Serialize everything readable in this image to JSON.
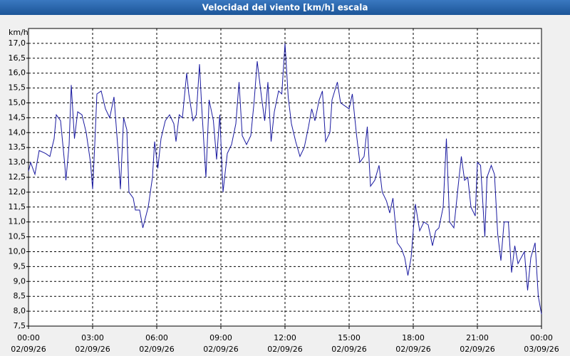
{
  "chart_data": {
    "type": "line",
    "title": "Velocidad del viento [km/h] escala",
    "y_label": "km/h",
    "color": "#1a1aa0",
    "grid": true,
    "xlim": [
      0,
      24
    ],
    "xticks": [
      {
        "value": 0,
        "label": "00:00"
      },
      {
        "value": 3,
        "label": "03:00"
      },
      {
        "value": 6,
        "label": "06:00"
      },
      {
        "value": 9,
        "label": "09:00"
      },
      {
        "value": 12,
        "label": "12:00"
      },
      {
        "value": 15,
        "label": "15:00"
      },
      {
        "value": 18,
        "label": "18:00"
      },
      {
        "value": 21,
        "label": "21:00"
      },
      {
        "value": 24,
        "label": "00:00"
      }
    ],
    "xtick_dates": [
      "02/09/26",
      "02/09/26",
      "02/09/26",
      "02/09/26",
      "02/09/26",
      "02/09/26",
      "02/09/26",
      "02/09/26",
      "03/09/26"
    ],
    "ylim": [
      7.5,
      17.5
    ],
    "yticks": [
      {
        "value": 7.5,
        "label": "7,5"
      },
      {
        "value": 8,
        "label": "8,0"
      },
      {
        "value": 8.5,
        "label": "8,5"
      },
      {
        "value": 9,
        "label": "9,0"
      },
      {
        "value": 9.5,
        "label": "9,5"
      },
      {
        "value": 10,
        "label": "10,0"
      },
      {
        "value": 10.5,
        "label": "10,5"
      },
      {
        "value": 11,
        "label": "11,0"
      },
      {
        "value": 11.5,
        "label": "11,5"
      },
      {
        "value": 12,
        "label": "12,0"
      },
      {
        "value": 12.5,
        "label": "12,5"
      },
      {
        "value": 13,
        "label": "13,0"
      },
      {
        "value": 13.5,
        "label": "13,5"
      },
      {
        "value": 14,
        "label": "14,0"
      },
      {
        "value": 14.5,
        "label": "14,5"
      },
      {
        "value": 15,
        "label": "15,0"
      },
      {
        "value": 15.5,
        "label": "15,5"
      },
      {
        "value": 16,
        "label": "16,0"
      },
      {
        "value": 16.5,
        "label": "16,5"
      },
      {
        "value": 17,
        "label": "17,0"
      }
    ],
    "x": [
      0.0,
      0.1,
      0.3,
      0.5,
      0.8,
      1.0,
      1.2,
      1.3,
      1.5,
      1.7,
      1.75,
      1.9,
      2.0,
      2.15,
      2.3,
      2.5,
      2.7,
      2.9,
      3.0,
      3.1,
      3.2,
      3.4,
      3.6,
      3.8,
      4.0,
      4.2,
      4.3,
      4.45,
      4.6,
      4.7,
      4.9,
      5.0,
      5.2,
      5.35,
      5.6,
      5.8,
      5.9,
      6.05,
      6.2,
      6.4,
      6.6,
      6.8,
      6.9,
      7.05,
      7.2,
      7.4,
      7.5,
      7.7,
      7.85,
      8.0,
      8.1,
      8.3,
      8.45,
      8.65,
      8.8,
      8.95,
      9.1,
      9.3,
      9.5,
      9.7,
      9.85,
      10.0,
      10.2,
      10.4,
      10.55,
      10.7,
      10.9,
      11.05,
      11.2,
      11.35,
      11.5,
      11.7,
      11.85,
      12.0,
      12.15,
      12.3,
      12.5,
      12.7,
      12.9,
      13.1,
      13.25,
      13.4,
      13.6,
      13.75,
      13.9,
      14.1,
      14.2,
      14.45,
      14.6,
      14.8,
      15.0,
      15.15,
      15.35,
      15.5,
      15.7,
      15.85,
      16.0,
      16.2,
      16.4,
      16.55,
      16.75,
      16.9,
      17.05,
      17.25,
      17.45,
      17.6,
      17.75,
      17.9,
      18.1,
      18.3,
      18.5,
      18.7,
      18.9,
      19.05,
      19.2,
      19.4,
      19.55,
      19.7,
      19.9,
      20.1,
      20.25,
      20.4,
      20.55,
      20.7,
      20.9,
      21.0,
      21.15,
      21.35,
      21.45,
      21.65,
      21.8,
      21.95,
      22.1,
      22.25,
      22.45,
      22.6,
      22.75,
      22.9,
      23.05,
      23.2,
      23.35,
      23.5,
      23.7,
      23.85,
      24.0
    ],
    "values": [
      12.7,
      13.0,
      12.6,
      13.4,
      13.3,
      13.2,
      13.8,
      14.6,
      14.4,
      12.9,
      12.4,
      13.6,
      15.6,
      13.8,
      14.7,
      14.6,
      14.0,
      13.0,
      12.1,
      13.6,
      15.3,
      15.4,
      14.8,
      14.5,
      15.2,
      13.3,
      12.1,
      14.5,
      14.1,
      12.0,
      11.8,
      11.4,
      11.4,
      10.8,
      11.5,
      12.5,
      13.7,
      12.8,
      13.8,
      14.4,
      14.6,
      14.3,
      13.7,
      14.6,
      14.5,
      16.0,
      15.3,
      14.4,
      14.6,
      16.3,
      14.9,
      12.5,
      15.1,
      14.4,
      13.1,
      14.6,
      12.0,
      13.3,
      13.6,
      14.3,
      15.7,
      13.9,
      13.6,
      13.9,
      15.0,
      16.4,
      15.2,
      14.4,
      15.7,
      13.7,
      14.7,
      15.4,
      15.3,
      17.0,
      15.2,
      14.3,
      13.7,
      13.2,
      13.5,
      14.2,
      14.8,
      14.4,
      15.1,
      15.4,
      13.7,
      14.0,
      15.1,
      15.7,
      15.0,
      14.9,
      14.8,
      15.3,
      13.9,
      13.0,
      13.2,
      14.2,
      12.2,
      12.4,
      12.9,
      12.0,
      11.7,
      11.3,
      11.8,
      10.3,
      10.1,
      9.8,
      9.2,
      9.8,
      11.6,
      10.7,
      11.0,
      10.9,
      10.2,
      10.7,
      10.8,
      11.5,
      13.8,
      11.0,
      10.8,
      12.2,
      13.2,
      12.4,
      12.5,
      11.5,
      11.2,
      13.0,
      12.9,
      10.5,
      12.5,
      12.9,
      12.6,
      10.6,
      9.7,
      11.0,
      11.0,
      9.3,
      10.2,
      9.6,
      9.8,
      10.0,
      8.7,
      9.8,
      10.3,
      8.5,
      7.9
    ]
  }
}
